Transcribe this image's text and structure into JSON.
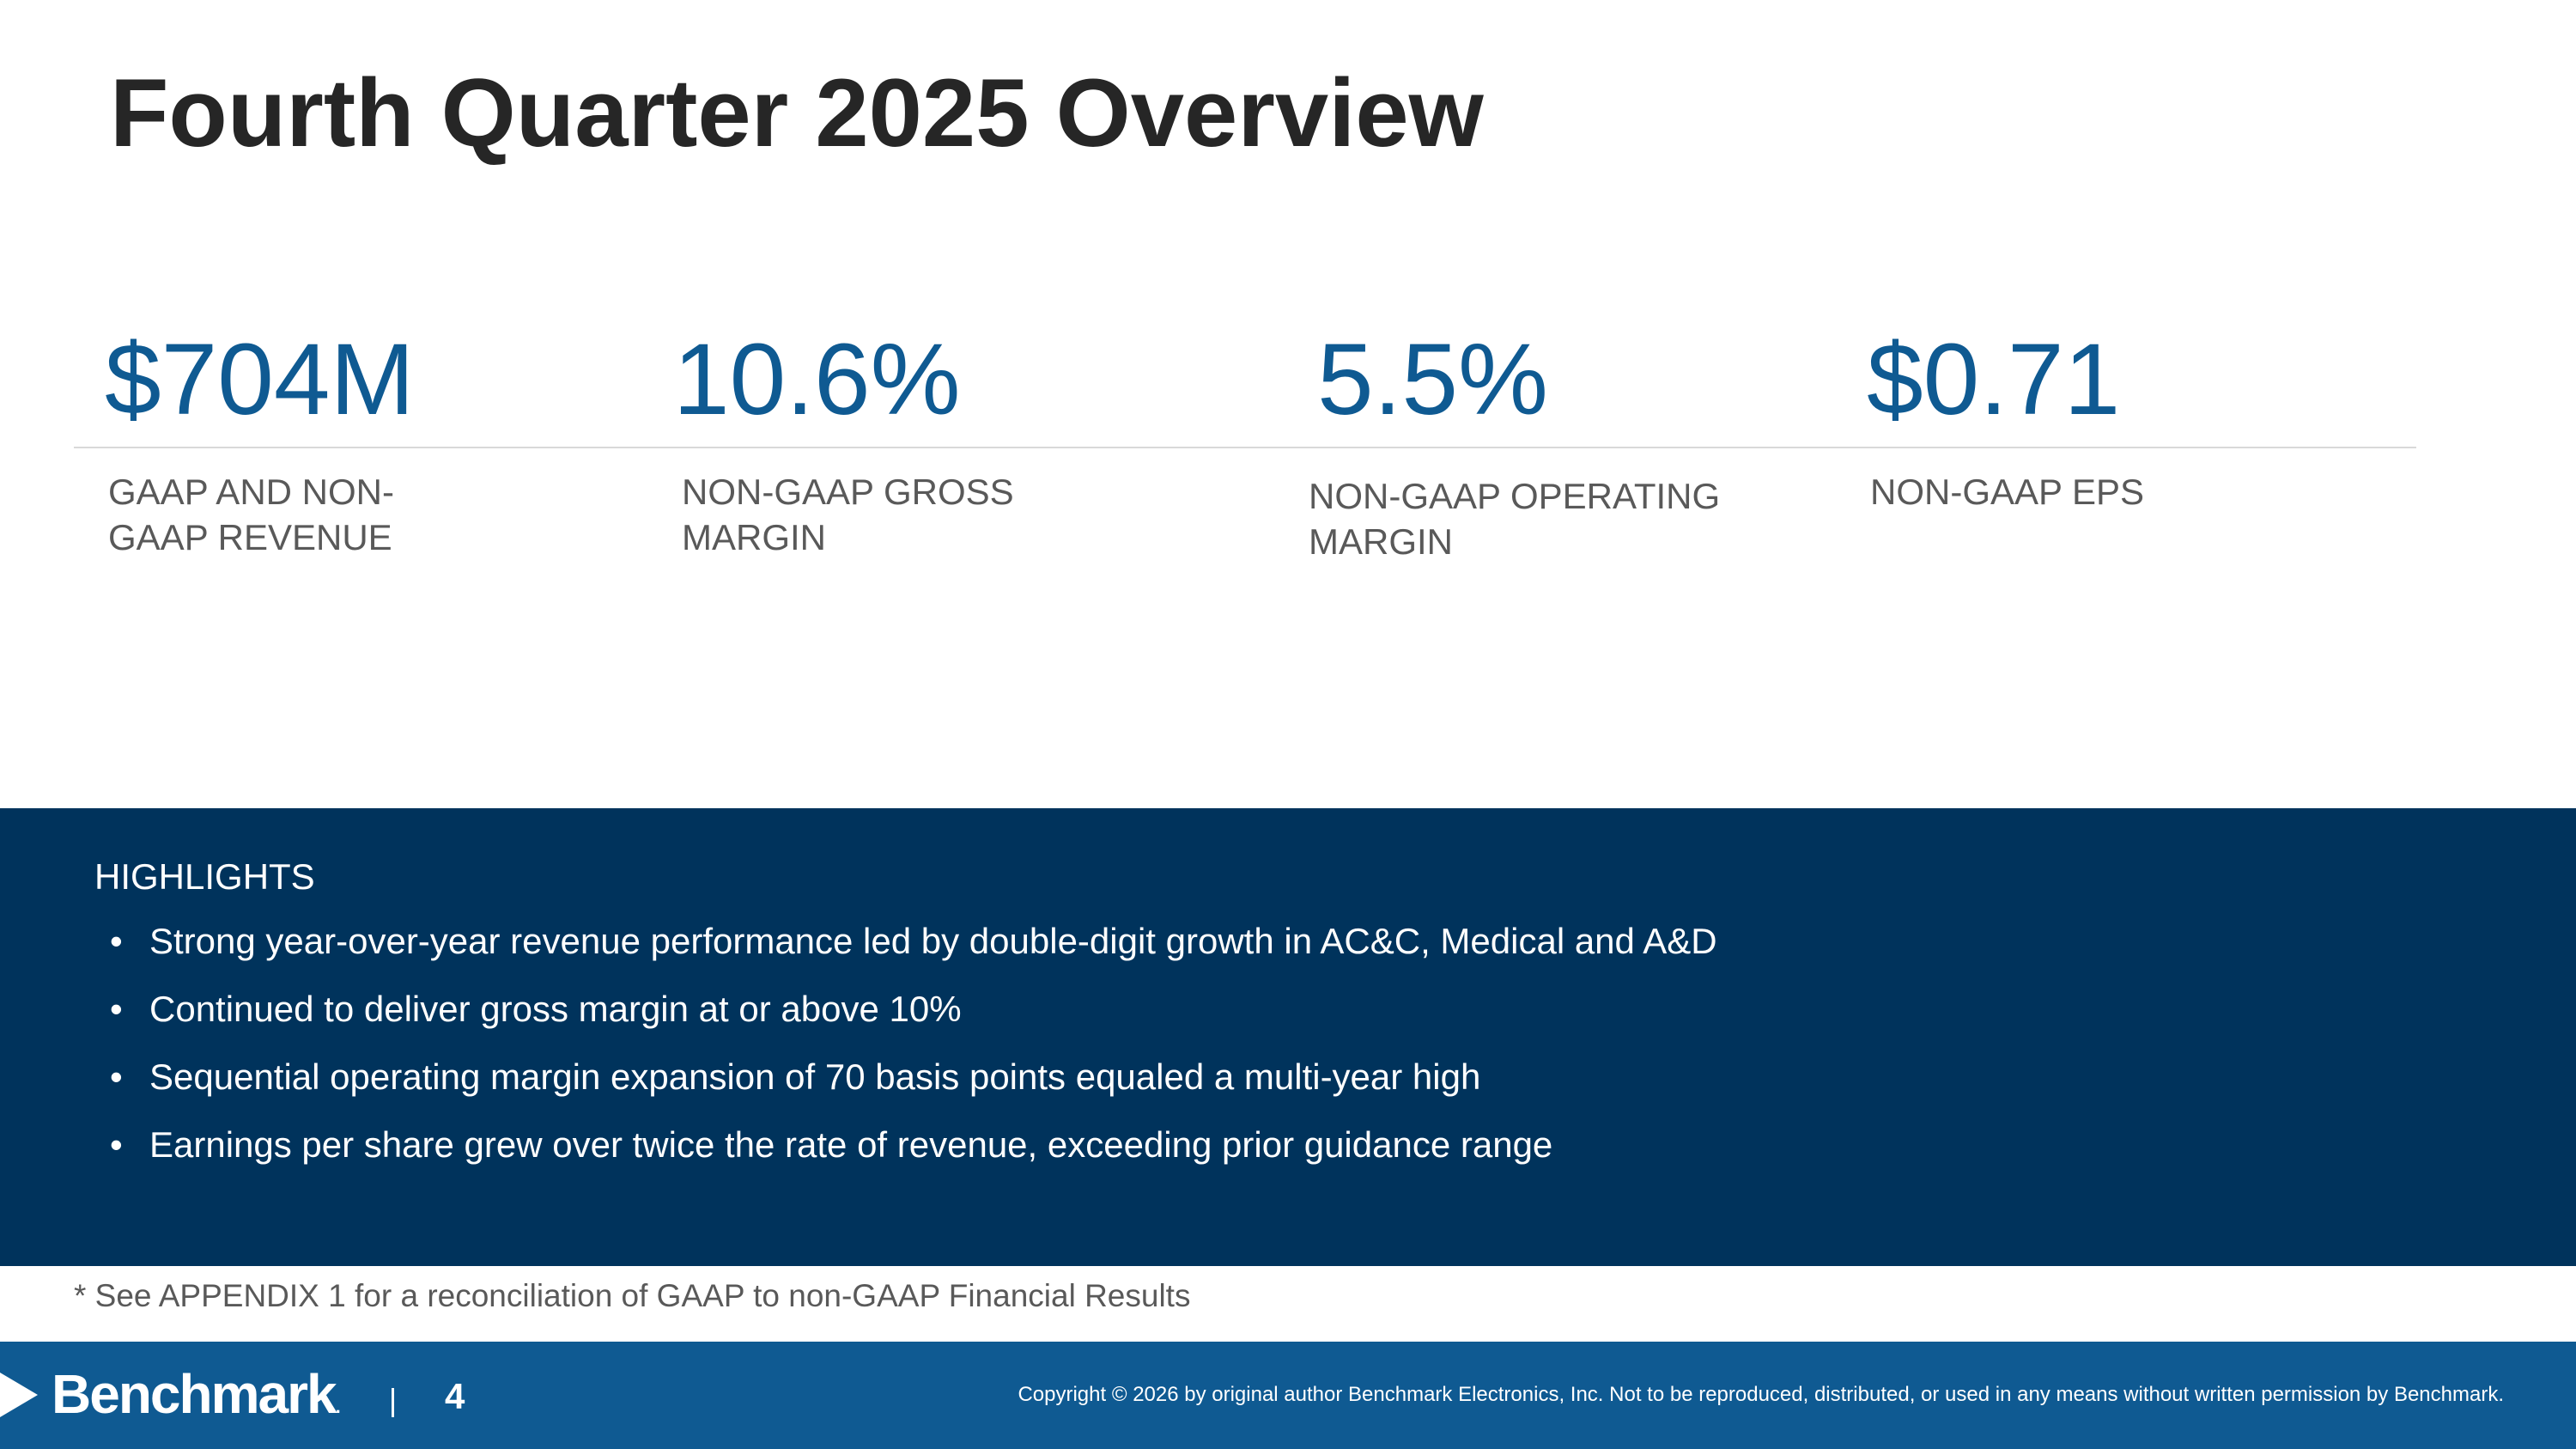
{
  "slide": {
    "title": "Fourth Quarter 2025 Overview"
  },
  "kpis": [
    {
      "value": "$704M",
      "label_line1": "GAAP AND NON-",
      "label_line2": "GAAP REVENUE"
    },
    {
      "value": "10.6%",
      "label_line1": "NON-GAAP GROSS",
      "label_line2": "MARGIN"
    },
    {
      "value": "5.5%",
      "label_line1": "NON-GAAP OPERATING",
      "label_line2": "MARGIN"
    },
    {
      "value": "$0.71",
      "label_line1": "NON-GAAP EPS",
      "label_line2": ""
    }
  ],
  "highlights": {
    "heading": "HIGHLIGHTS",
    "bullet_glyph": "•",
    "items": [
      "Strong year-over-year revenue performance led by double-digit growth in AC&C, Medical and A&D",
      "Continued to deliver gross margin at or above 10%",
      "Sequential operating margin expansion of 70 basis points equaled a multi-year high",
      "Earnings per share grew over twice the rate of revenue, exceeding prior guidance range"
    ]
  },
  "footnote": "* See APPENDIX 1 for a reconciliation of GAAP to non-GAAP Financial Results",
  "footer": {
    "logo_text": "Benchmark",
    "logo_mark": ".",
    "page_number": "4",
    "copyright": "Copyright © 2026 by original author Benchmark Electronics, Inc. Not to be reproduced, distributed, or used in any means without written permission by Benchmark."
  },
  "colors": {
    "accent_blue": "#0f5a92",
    "highlights_bg": "#00335c",
    "title_text": "#262626",
    "label_text": "#595959"
  }
}
